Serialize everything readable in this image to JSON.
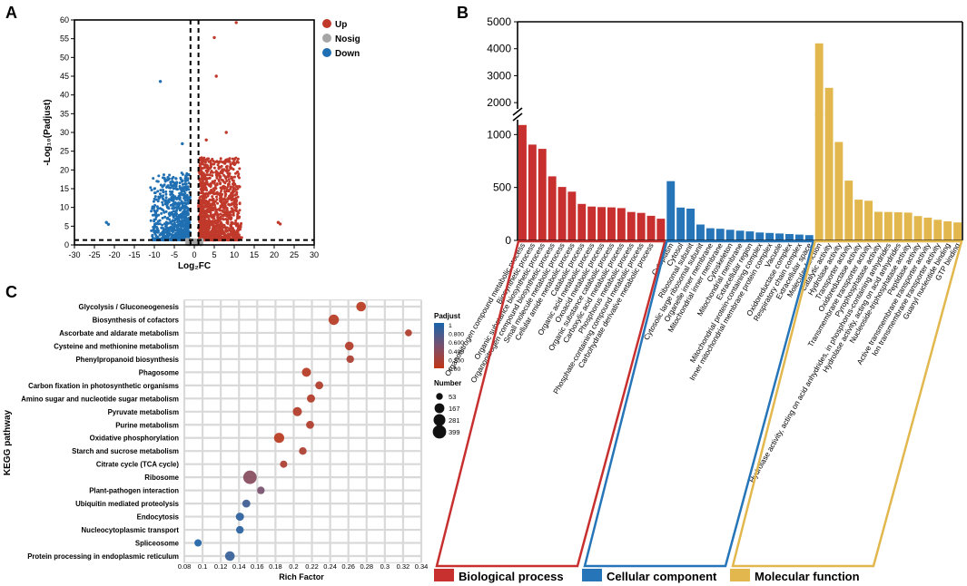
{
  "panels": {
    "A": {
      "letter": "A",
      "type": "scatter",
      "xlabel": "Log₂FC",
      "ylabel": "-Log₁₀(Padjust)",
      "xlim": [
        -30,
        30
      ],
      "ylim": [
        0,
        60
      ],
      "xticks": [
        "-30",
        "-25",
        "-20",
        "-15",
        "-10",
        "-5",
        "0",
        "5",
        "10",
        "15",
        "20",
        "25",
        "30"
      ],
      "yticks": [
        "0",
        "5",
        "10",
        "15",
        "20",
        "25",
        "30",
        "35",
        "40",
        "45",
        "50",
        "55",
        "60"
      ],
      "legend": [
        {
          "label": "Up",
          "color": "#c0392b"
        },
        {
          "label": "Nosig",
          "color": "#a6a6a6"
        },
        {
          "label": "Down",
          "color": "#1f6fb2"
        }
      ],
      "threshold_lines": {
        "x": [
          -1,
          1
        ],
        "y": 1.3
      },
      "outliers": [
        [
          10.5,
          59.3
        ],
        [
          -8.5,
          43.6
        ],
        [
          5,
          55.3
        ],
        [
          5.5,
          45
        ],
        [
          -22,
          6
        ],
        [
          -21.5,
          5.5
        ],
        [
          21,
          6
        ],
        [
          21.5,
          5.6
        ],
        [
          8,
          30
        ],
        [
          3,
          28
        ],
        [
          -3,
          27
        ]
      ]
    },
    "B": {
      "letter": "B",
      "type": "bar",
      "yticks_low": [
        "0",
        "500",
        "1000"
      ],
      "yticks_high": [
        "2000",
        "3000",
        "4000",
        "5000"
      ],
      "groups": [
        {
          "name": "Biological process",
          "color": "#c8302f",
          "items": [
            [
              "Organonitrogen compound metabolic process",
              1090
            ],
            [
              "Biosynthetic process",
              905
            ],
            [
              "Organic substance biosynthetic process",
              865
            ],
            [
              "Organonitrogen compound biosynthetic process",
              605
            ],
            [
              "Small molecule metabolic process",
              505
            ],
            [
              "Cellular amide metabolic process",
              460
            ],
            [
              "Catabolic process",
              345
            ],
            [
              "Organic acid metabolic process",
              320
            ],
            [
              "Oxoacid metabolic process",
              315
            ],
            [
              "Organic substance catabolic process",
              312
            ],
            [
              "Carboxylic acid metabolic process",
              305
            ],
            [
              "Phosphorus metabolic process",
              268
            ],
            [
              "Phosphate-containing compound metabolic process",
              260
            ],
            [
              "Carbohydrate derivative metabolic process",
              232
            ],
            [
              "",
              205
            ]
          ]
        },
        {
          "name": "Cellular component",
          "color": "#2575b8",
          "items": [
            [
              "Cytoplasm",
              560
            ],
            [
              "Cytosol",
              310
            ],
            [
              "Ribosomal subunit",
              300
            ],
            [
              "Cytosolic large ribosomal subunit",
              150
            ],
            [
              "Organelle inner membrane",
              115
            ],
            [
              "Mitochondrial inner membrane",
              110
            ],
            [
              "Cytoskeleton",
              100
            ],
            [
              "Mitochondrial membrane",
              92
            ],
            [
              "Extracellular region",
              85
            ],
            [
              "Mitochondrial protein-containing complex",
              75
            ],
            [
              "Inner mitochondrial membrane protein complex",
              70
            ],
            [
              "Vacuole",
              65
            ],
            [
              "Oxidoreductase complex",
              60
            ],
            [
              "Respiratory chain complex",
              55
            ],
            [
              "Extracellular space",
              50
            ]
          ]
        },
        {
          "name": "Molecular function",
          "color": "#e2b84e",
          "items": [
            [
              "Molecular function",
              4200
            ],
            [
              "Catalytic activity",
              2550
            ],
            [
              "Hydrolase activity",
              930
            ],
            [
              "Transporter activity",
              565
            ],
            [
              "Oxidoreductase activity",
              385
            ],
            [
              "Transmembrane transporter activity",
              375
            ],
            [
              "Pyrophosphatase activity",
              270
            ],
            [
              "Hydrolase activity, acting on acid anhydrides, in phosphorus-containing anhydrides",
              268
            ],
            [
              "Hydrolase activity, acting on acid anhydrides",
              266
            ],
            [
              "Nucleoside-triphosphatase activity",
              262
            ],
            [
              "Peptidase activity",
              230
            ],
            [
              "Active transmembrane transporter activity",
              215
            ],
            [
              "Ion transmembrane transporter activity",
              195
            ],
            [
              "Guanyl nucleotide binding",
              180
            ],
            [
              "GTP binding",
              170
            ]
          ]
        }
      ],
      "break": {
        "low_max": 1200,
        "high_min": 1500,
        "high_max": 5000
      }
    },
    "C": {
      "letter": "C",
      "type": "scatter",
      "xlabel": "Rich Factor",
      "ylabel": "KEGG pathway",
      "xticks": [
        "0.08",
        "0.1",
        "0.12",
        "0.14",
        "0.16",
        "0.18",
        "0.2",
        "0.22",
        "0.24",
        "0.26",
        "0.28",
        "0.3",
        "0.32",
        "0.34"
      ],
      "xlim": [
        0.08,
        0.34
      ],
      "pathways": [
        {
          "name": "Glycolysis / Gluconeogenesis",
          "rich": 0.274,
          "number": 160,
          "padj": 0.05
        },
        {
          "name": "Biosynthesis of cofactors",
          "rich": 0.244,
          "number": 200,
          "padj": 0.08
        },
        {
          "name": "Ascorbate and aldarate metabolism",
          "rich": 0.326,
          "number": 60,
          "padj": 0.12
        },
        {
          "name": "Cysteine and methionine metabolism",
          "rich": 0.261,
          "number": 120,
          "padj": 0.1
        },
        {
          "name": "Phenylpropanoid biosynthesis",
          "rich": 0.262,
          "number": 80,
          "padj": 0.15
        },
        {
          "name": "Phagosome",
          "rich": 0.214,
          "number": 140,
          "padj": 0.08
        },
        {
          "name": "Carbon fixation in photosynthetic organisms",
          "rich": 0.228,
          "number": 90,
          "padj": 0.12
        },
        {
          "name": "Amino sugar and nucleotide sugar metabolism",
          "rich": 0.219,
          "number": 100,
          "padj": 0.1
        },
        {
          "name": "Pyruvate metabolism",
          "rich": 0.204,
          "number": 140,
          "padj": 0.1
        },
        {
          "name": "Purine metabolism",
          "rich": 0.218,
          "number": 90,
          "padj": 0.12
        },
        {
          "name": "Oxidative phosphorylation",
          "rich": 0.184,
          "number": 190,
          "padj": 0.05
        },
        {
          "name": "Starch and sucrose metabolism",
          "rich": 0.21,
          "number": 80,
          "padj": 0.15
        },
        {
          "name": "Citrate cycle (TCA cycle)",
          "rich": 0.189,
          "number": 70,
          "padj": 0.15
        },
        {
          "name": "Ribosome",
          "rich": 0.152,
          "number": 399,
          "padj": 0.4
        },
        {
          "name": "Plant-pathogen interaction",
          "rich": 0.164,
          "number": 80,
          "padj": 0.5
        },
        {
          "name": "Ubiquitin mediated proteolysis",
          "rich": 0.148,
          "number": 90,
          "padj": 0.8
        },
        {
          "name": "Endocytosis",
          "rich": 0.141,
          "number": 100,
          "padj": 0.9
        },
        {
          "name": "Nucleocytoplasmic transport",
          "rich": 0.141,
          "number": 80,
          "padj": 0.92
        },
        {
          "name": "Spliceosome",
          "rich": 0.095,
          "number": 70,
          "padj": 0.97
        },
        {
          "name": "Protein processing in endoplasmic reticulum",
          "rich": 0.13,
          "number": 160,
          "padj": 0.85
        }
      ],
      "padj_legend": {
        "title": "Padjust",
        "ticks": [
          "1",
          "0.800",
          "0.600",
          "0.400",
          "0.200",
          "0.00"
        ]
      },
      "number_legend": {
        "title": "Number",
        "values": [
          "53",
          "167",
          "281",
          "399"
        ]
      }
    }
  }
}
